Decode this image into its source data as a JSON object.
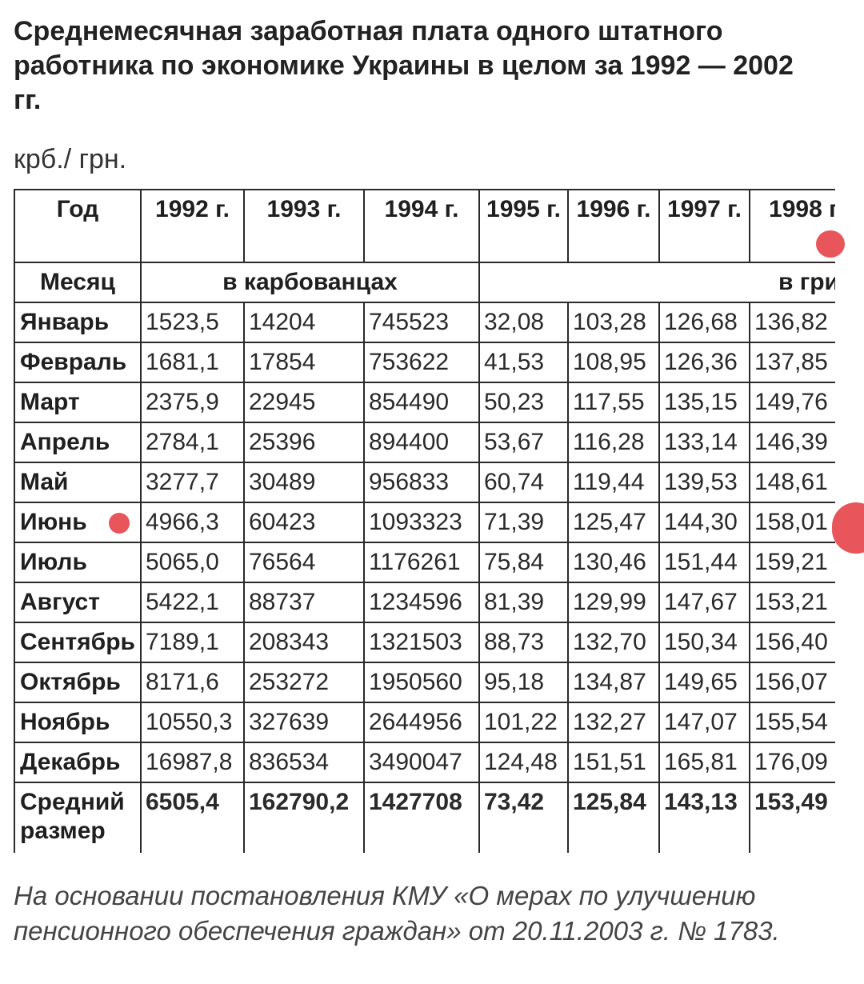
{
  "title": "Среднемесячная заработная плата одного штатного работника по экономике Украины в целом за 1992 — 2002 гг.",
  "unit": "крб./ грн.",
  "table": {
    "year_header": "Год",
    "years": [
      "1992 г.",
      "1993 г.",
      "1994 г.",
      "1995 г.",
      "1996 г.",
      "1997 г.",
      "1998 г."
    ],
    "month_header": "Месяц",
    "currency_krb": "в карбованцах",
    "currency_grn": "в гри",
    "rows": [
      {
        "label": "Январь",
        "values": [
          "1523,5",
          "14204",
          "745523",
          "32,08",
          "103,28",
          "126,68",
          "136,82"
        ]
      },
      {
        "label": "Февраль",
        "values": [
          "1681,1",
          "17854",
          "753622",
          "41,53",
          "108,95",
          "126,36",
          "137,85"
        ]
      },
      {
        "label": "Март",
        "values": [
          "2375,9",
          "22945",
          "854490",
          "50,23",
          "117,55",
          "135,15",
          "149,76"
        ]
      },
      {
        "label": "Апрель",
        "values": [
          "2784,1",
          "25396",
          "894400",
          "53,67",
          "116,28",
          "133,14",
          "146,39"
        ]
      },
      {
        "label": "Май",
        "values": [
          "3277,7",
          "30489",
          "956833",
          "60,74",
          "119,44",
          "139,53",
          "148,61"
        ]
      },
      {
        "label": "Июнь",
        "values": [
          "4966,3",
          "60423",
          "1093323",
          "71,39",
          "125,47",
          "144,30",
          "158,01"
        ]
      },
      {
        "label": "Июль",
        "values": [
          "5065,0",
          "76564",
          "1176261",
          "75,84",
          "130,46",
          "151,44",
          "159,21"
        ]
      },
      {
        "label": "Август",
        "values": [
          "5422,1",
          "88737",
          "1234596",
          "81,39",
          "129,99",
          "147,67",
          "153,21"
        ]
      },
      {
        "label": "Сентябрь",
        "values": [
          "7189,1",
          "208343",
          "1321503",
          "88,73",
          "132,70",
          "150,34",
          "156,40"
        ]
      },
      {
        "label": "Октябрь",
        "values": [
          "8171,6",
          "253272",
          "1950560",
          "95,18",
          "134,87",
          "149,65",
          "156,07"
        ]
      },
      {
        "label": "Ноябрь",
        "values": [
          "10550,3",
          "327639",
          "2644956",
          "101,22",
          "132,27",
          "147,07",
          "155,54"
        ]
      },
      {
        "label": "Декабрь",
        "values": [
          "16987,8",
          "836534",
          "3490047",
          "124,48",
          "151,51",
          "165,81",
          "176,09"
        ]
      }
    ],
    "average": {
      "label": "Средний размер",
      "values": [
        "6505,4",
        "162790,2",
        "1427708",
        "73,42",
        "125,84",
        "143,13",
        "153,49"
      ]
    }
  },
  "footnote": "На основании постановления КМУ «О мерах по улучшению пенсионного обеспечения граждан» от 20.11.2003 г. № 1783.",
  "colors": {
    "marker": "#e8555a"
  }
}
